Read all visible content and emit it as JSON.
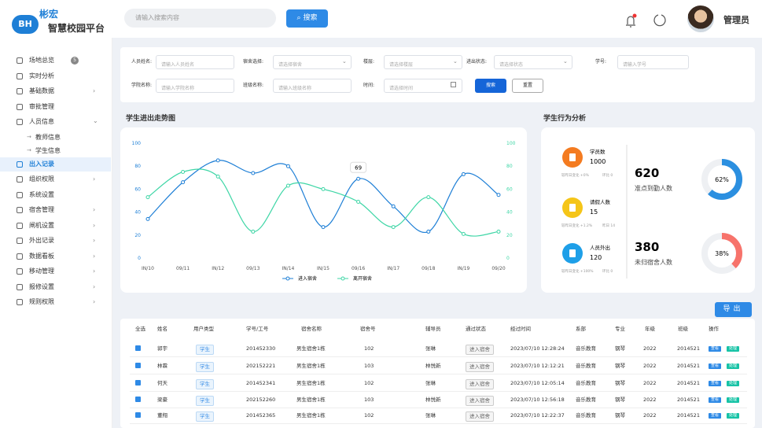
{
  "header": {
    "logo": "BH",
    "brand": "彬宏",
    "title": "智慧校园平台",
    "search_placeholder": "请输入搜索内容",
    "search_button": "搜索",
    "user": "管理员"
  },
  "menu": [
    {
      "label": "场地总览",
      "badge": "5"
    },
    {
      "label": "实时分析"
    },
    {
      "label": "基础数据",
      "expandable": true
    },
    {
      "label": "审批管理"
    },
    {
      "label": "人员信息",
      "expanded": true,
      "children": [
        "教师信息",
        "学生信息"
      ]
    },
    {
      "label": "出入记录",
      "active": true
    },
    {
      "label": "组织权限",
      "expandable": true
    },
    {
      "label": "系统设置"
    },
    {
      "label": "宿舍管理",
      "expandable": true
    },
    {
      "label": "闸机设置",
      "expandable": true
    },
    {
      "label": "外出记录",
      "expandable": true
    },
    {
      "label": "数据看板",
      "expandable": true
    },
    {
      "label": "移动管理",
      "expandable": true
    },
    {
      "label": "报修设置",
      "expandable": true
    },
    {
      "label": "规则权限",
      "expandable": true
    }
  ],
  "filters": [
    {
      "label": "人员姓名:",
      "placeholder": "请输入人员姓名"
    },
    {
      "label": "宿舍选择:",
      "placeholder": "请选择宿舍",
      "select": true
    },
    {
      "label": "楼层:",
      "placeholder": "请选择楼层",
      "select": true
    },
    {
      "label": "进出状态:",
      "placeholder": "请选择状态",
      "select": true
    },
    {
      "label": "学号:",
      "placeholder": "请输入学号"
    },
    {
      "label": "学院名称:",
      "placeholder": "请输入学院名称"
    },
    {
      "label": "班级名称:",
      "placeholder": "请输入班级名称"
    },
    {
      "label": "时间:",
      "placeholder": "请选择时间",
      "date": true
    }
  ],
  "filter_buttons": [
    "搜索",
    "重置"
  ],
  "chart_data": {
    "type": "line",
    "title": "学生进出走势图",
    "categories": [
      "IN/10",
      "09/11",
      "IN/12",
      "09/13",
      "IN/14",
      "IN/15",
      "09/16",
      "IN/17",
      "09/18",
      "IN/19",
      "09/20"
    ],
    "ylim": [
      0,
      100
    ],
    "yticks": [
      0,
      20,
      40,
      60,
      80,
      100
    ],
    "y2lim": [
      0,
      100
    ],
    "y2ticks": [
      0,
      20,
      40,
      60,
      80,
      100
    ],
    "legend": "bottom",
    "series": [
      {
        "name": "进入宿舍",
        "color": "#1e7fd6",
        "values": [
          34,
          66,
          85,
          74,
          80,
          27,
          69,
          45,
          23,
          73,
          55
        ]
      },
      {
        "name": "离开宿舍",
        "color": "#3ed6a6",
        "axis": "y2",
        "values": [
          53,
          75,
          71,
          23,
          63,
          60,
          49,
          27,
          53,
          21,
          23
        ]
      }
    ]
  },
  "behavior": {
    "title": "学生行为分析",
    "items": [
      {
        "label": "学员数",
        "value": "1000",
        "note": "较昨日变化 +0%",
        "note2": "环比 0",
        "color": "#f47b20"
      },
      {
        "label": "请假人数",
        "value": "15",
        "note": "较昨日变化 +1.2%",
        "note2": "昨日 14",
        "color": "#f5c518"
      },
      {
        "label": "人员外出",
        "value": "120",
        "note": "较昨日变化 +100%",
        "note2": "环比 0",
        "color": "#1e9fe8"
      }
    ],
    "stats": [
      {
        "value": "620",
        "label": "准点到勤人数",
        "percent": 62,
        "percent_label": "62%",
        "color": "#2b8fe0"
      },
      {
        "value": "380",
        "label": "未归宿舍人数",
        "percent": 38,
        "percent_label": "38%",
        "color": "#f7736b"
      }
    ]
  },
  "export_button": "导出",
  "table": {
    "columns": [
      "全选",
      "姓名",
      "用户类型",
      "学号/工号",
      "宿舍名称",
      "宿舍号",
      "辅导员",
      "通过状态",
      "经过时间",
      "系部",
      "专业",
      "年级",
      "班级",
      "操作"
    ],
    "rows": [
      [
        "郭宇",
        "学生",
        "201452330",
        "男生宿舍1栋",
        "102",
        "张琳",
        "进入宿舍",
        "2023/07/10 12:28:24",
        "音乐教育",
        "钢琴",
        "2022",
        "2014521"
      ],
      [
        "林霖",
        "学生",
        "202152221",
        "男生宿舍1栋",
        "103",
        "林悦新",
        "进入宿舍",
        "2023/07/10 12:12:21",
        "音乐教育",
        "钢琴",
        "2022",
        "2014521"
      ],
      [
        "何天",
        "学生",
        "201452341",
        "男生宿舍1栋",
        "102",
        "张琳",
        "进入宿舍",
        "2023/07/10 12:05:14",
        "音乐教育",
        "钢琴",
        "2022",
        "2014521"
      ],
      [
        "梁豪",
        "学生",
        "202152260",
        "男生宿舍1栋",
        "103",
        "林悦新",
        "进入宿舍",
        "2023/07/10 12:56:18",
        "音乐教育",
        "钢琴",
        "2022",
        "2014521"
      ],
      [
        "董翔",
        "学生",
        "201452365",
        "男生宿舍1栋",
        "102",
        "张琳",
        "进入宿舍",
        "2023/07/10 12:22:37",
        "音乐教育",
        "钢琴",
        "2022",
        "2014521"
      ]
    ],
    "actions": [
      "查看",
      "处理"
    ]
  }
}
